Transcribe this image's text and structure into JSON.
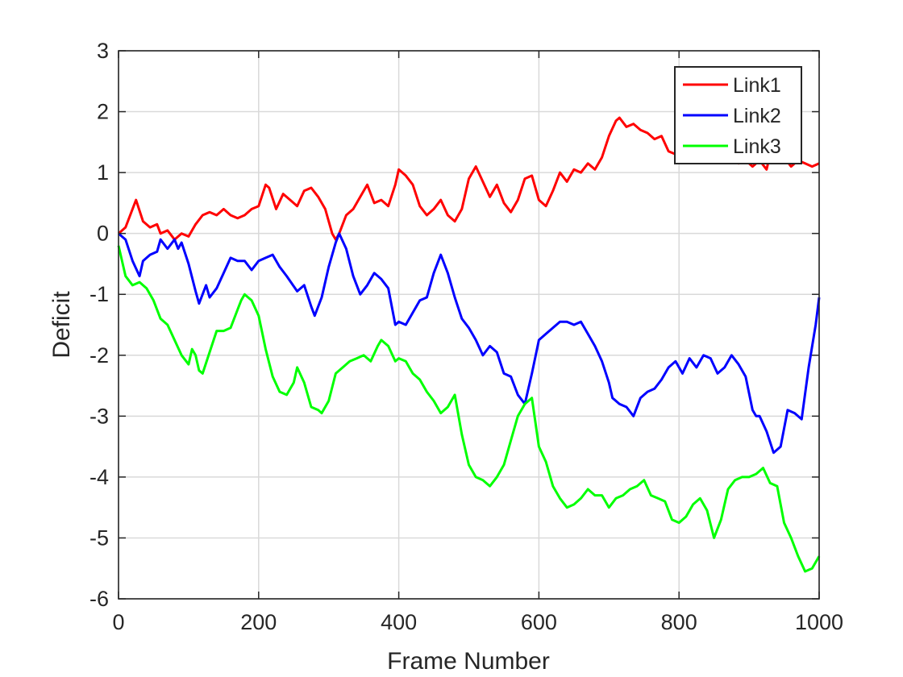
{
  "chart_data": {
    "type": "line",
    "title": "",
    "xlabel": "Frame Number",
    "ylabel": "Deficit",
    "xlim": [
      0,
      1000
    ],
    "ylim": [
      -6,
      3
    ],
    "xticks": [
      0,
      200,
      400,
      600,
      800,
      1000
    ],
    "yticks": [
      3,
      2,
      1,
      0,
      -1,
      -2,
      -3,
      -4,
      -5,
      -6
    ],
    "grid": true,
    "legend_position": "top-right",
    "series": [
      {
        "name": "Link1",
        "color": "#ff0000",
        "x": [
          0,
          10,
          25,
          35,
          45,
          55,
          60,
          70,
          80,
          90,
          100,
          110,
          120,
          130,
          140,
          150,
          160,
          170,
          180,
          190,
          200,
          210,
          215,
          225,
          235,
          245,
          255,
          265,
          275,
          285,
          295,
          305,
          310,
          315,
          325,
          335,
          345,
          355,
          365,
          375,
          385,
          395,
          400,
          410,
          420,
          430,
          440,
          450,
          460,
          470,
          480,
          490,
          500,
          510,
          520,
          530,
          540,
          550,
          560,
          570,
          580,
          590,
          600,
          610,
          620,
          630,
          640,
          650,
          660,
          670,
          680,
          690,
          700,
          710,
          715,
          725,
          735,
          745,
          755,
          765,
          775,
          785,
          795,
          805,
          815,
          825,
          835,
          845,
          855,
          865,
          875,
          885,
          895,
          905,
          915,
          925,
          930,
          940,
          950,
          960,
          970,
          980,
          990,
          1000
        ],
        "y": [
          0,
          0.1,
          0.55,
          0.2,
          0.1,
          0.15,
          0.0,
          0.05,
          -0.1,
          0.0,
          -0.05,
          0.15,
          0.3,
          0.35,
          0.3,
          0.4,
          0.3,
          0.25,
          0.3,
          0.4,
          0.45,
          0.8,
          0.75,
          0.4,
          0.65,
          0.55,
          0.45,
          0.7,
          0.75,
          0.6,
          0.4,
          0.0,
          -0.1,
          0.0,
          0.3,
          0.4,
          0.6,
          0.8,
          0.5,
          0.55,
          0.45,
          0.8,
          1.05,
          0.95,
          0.8,
          0.45,
          0.3,
          0.4,
          0.55,
          0.3,
          0.2,
          0.4,
          0.9,
          1.1,
          0.85,
          0.6,
          0.8,
          0.5,
          0.35,
          0.55,
          0.9,
          0.95,
          0.55,
          0.45,
          0.7,
          1.0,
          0.85,
          1.05,
          1.0,
          1.15,
          1.05,
          1.25,
          1.6,
          1.85,
          1.9,
          1.75,
          1.8,
          1.7,
          1.65,
          1.55,
          1.6,
          1.35,
          1.3,
          1.25,
          1.45,
          1.3,
          1.35,
          1.45,
          1.2,
          1.3,
          1.25,
          1.15,
          1.2,
          1.1,
          1.2,
          1.05,
          1.3,
          1.2,
          1.25,
          1.1,
          1.2,
          1.15,
          1.1,
          1.15
        ]
      },
      {
        "name": "Link2",
        "color": "#0000ff",
        "x": [
          0,
          10,
          20,
          30,
          35,
          45,
          55,
          60,
          70,
          80,
          85,
          90,
          100,
          110,
          115,
          125,
          130,
          140,
          150,
          160,
          170,
          180,
          190,
          200,
          210,
          220,
          230,
          240,
          255,
          265,
          275,
          280,
          290,
          300,
          310,
          315,
          325,
          335,
          345,
          355,
          365,
          375,
          385,
          395,
          400,
          410,
          420,
          430,
          440,
          450,
          460,
          470,
          480,
          490,
          500,
          510,
          520,
          530,
          540,
          550,
          560,
          570,
          580,
          590,
          600,
          610,
          620,
          630,
          640,
          650,
          660,
          670,
          680,
          690,
          700,
          705,
          715,
          725,
          735,
          745,
          755,
          765,
          775,
          785,
          795,
          805,
          815,
          825,
          835,
          845,
          855,
          865,
          875,
          885,
          895,
          905,
          910,
          915,
          925,
          935,
          945,
          955,
          965,
          975,
          985,
          995,
          1000
        ],
        "y": [
          0,
          -0.1,
          -0.45,
          -0.7,
          -0.45,
          -0.35,
          -0.3,
          -0.1,
          -0.25,
          -0.1,
          -0.25,
          -0.15,
          -0.5,
          -0.95,
          -1.15,
          -0.85,
          -1.05,
          -0.9,
          -0.65,
          -0.4,
          -0.45,
          -0.45,
          -0.6,
          -0.45,
          -0.4,
          -0.35,
          -0.55,
          -0.7,
          -0.95,
          -0.85,
          -1.2,
          -1.35,
          -1.05,
          -0.55,
          -0.15,
          0.0,
          -0.25,
          -0.7,
          -1.0,
          -0.85,
          -0.65,
          -0.75,
          -0.9,
          -1.5,
          -1.45,
          -1.5,
          -1.3,
          -1.1,
          -1.05,
          -0.65,
          -0.35,
          -0.65,
          -1.05,
          -1.4,
          -1.55,
          -1.75,
          -2.0,
          -1.85,
          -1.95,
          -2.3,
          -2.35,
          -2.65,
          -2.8,
          -2.3,
          -1.75,
          -1.65,
          -1.55,
          -1.45,
          -1.45,
          -1.5,
          -1.45,
          -1.65,
          -1.85,
          -2.1,
          -2.45,
          -2.7,
          -2.8,
          -2.85,
          -3.0,
          -2.7,
          -2.6,
          -2.55,
          -2.4,
          -2.2,
          -2.1,
          -2.3,
          -2.05,
          -2.2,
          -2.0,
          -2.05,
          -2.3,
          -2.2,
          -2.0,
          -2.15,
          -2.35,
          -2.9,
          -3.0,
          -3.0,
          -3.25,
          -3.6,
          -3.5,
          -2.9,
          -2.95,
          -3.05,
          -2.2,
          -1.5,
          -1.05
        ]
      },
      {
        "name": "Link3",
        "color": "#00ff00",
        "x": [
          0,
          10,
          20,
          30,
          40,
          50,
          60,
          70,
          80,
          90,
          100,
          105,
          110,
          115,
          120,
          130,
          140,
          150,
          160,
          170,
          175,
          180,
          190,
          200,
          210,
          220,
          230,
          240,
          250,
          255,
          265,
          275,
          285,
          290,
          300,
          310,
          320,
          330,
          340,
          350,
          360,
          370,
          375,
          385,
          395,
          400,
          410,
          420,
          430,
          440,
          450,
          460,
          470,
          480,
          490,
          500,
          510,
          520,
          530,
          540,
          550,
          560,
          570,
          580,
          590,
          600,
          610,
          620,
          630,
          640,
          650,
          660,
          670,
          680,
          690,
          700,
          710,
          720,
          730,
          740,
          750,
          760,
          770,
          780,
          790,
          800,
          810,
          820,
          830,
          840,
          850,
          860,
          870,
          880,
          890,
          900,
          910,
          920,
          930,
          940,
          950,
          960,
          970,
          980,
          990,
          1000
        ],
        "y": [
          -0.2,
          -0.7,
          -0.85,
          -0.8,
          -0.9,
          -1.1,
          -1.4,
          -1.5,
          -1.75,
          -2.0,
          -2.15,
          -1.9,
          -2.0,
          -2.25,
          -2.3,
          -1.95,
          -1.6,
          -1.6,
          -1.55,
          -1.25,
          -1.1,
          -1.0,
          -1.1,
          -1.35,
          -1.9,
          -2.35,
          -2.6,
          -2.65,
          -2.45,
          -2.2,
          -2.45,
          -2.85,
          -2.9,
          -2.95,
          -2.75,
          -2.3,
          -2.2,
          -2.1,
          -2.05,
          -2.0,
          -2.1,
          -1.85,
          -1.75,
          -1.85,
          -2.1,
          -2.05,
          -2.1,
          -2.3,
          -2.4,
          -2.6,
          -2.75,
          -2.95,
          -2.85,
          -2.65,
          -3.3,
          -3.8,
          -4.0,
          -4.05,
          -4.15,
          -4.0,
          -3.8,
          -3.4,
          -3.0,
          -2.8,
          -2.7,
          -3.5,
          -3.75,
          -4.15,
          -4.35,
          -4.5,
          -4.45,
          -4.35,
          -4.2,
          -4.3,
          -4.3,
          -4.5,
          -4.35,
          -4.3,
          -4.2,
          -4.15,
          -4.05,
          -4.3,
          -4.35,
          -4.4,
          -4.7,
          -4.75,
          -4.65,
          -4.45,
          -4.35,
          -4.55,
          -5.0,
          -4.7,
          -4.2,
          -4.05,
          -4.0,
          -4.0,
          -3.95,
          -3.85,
          -4.1,
          -4.15,
          -4.75,
          -5.0,
          -5.3,
          -5.55,
          -5.5,
          -5.3
        ]
      }
    ]
  }
}
